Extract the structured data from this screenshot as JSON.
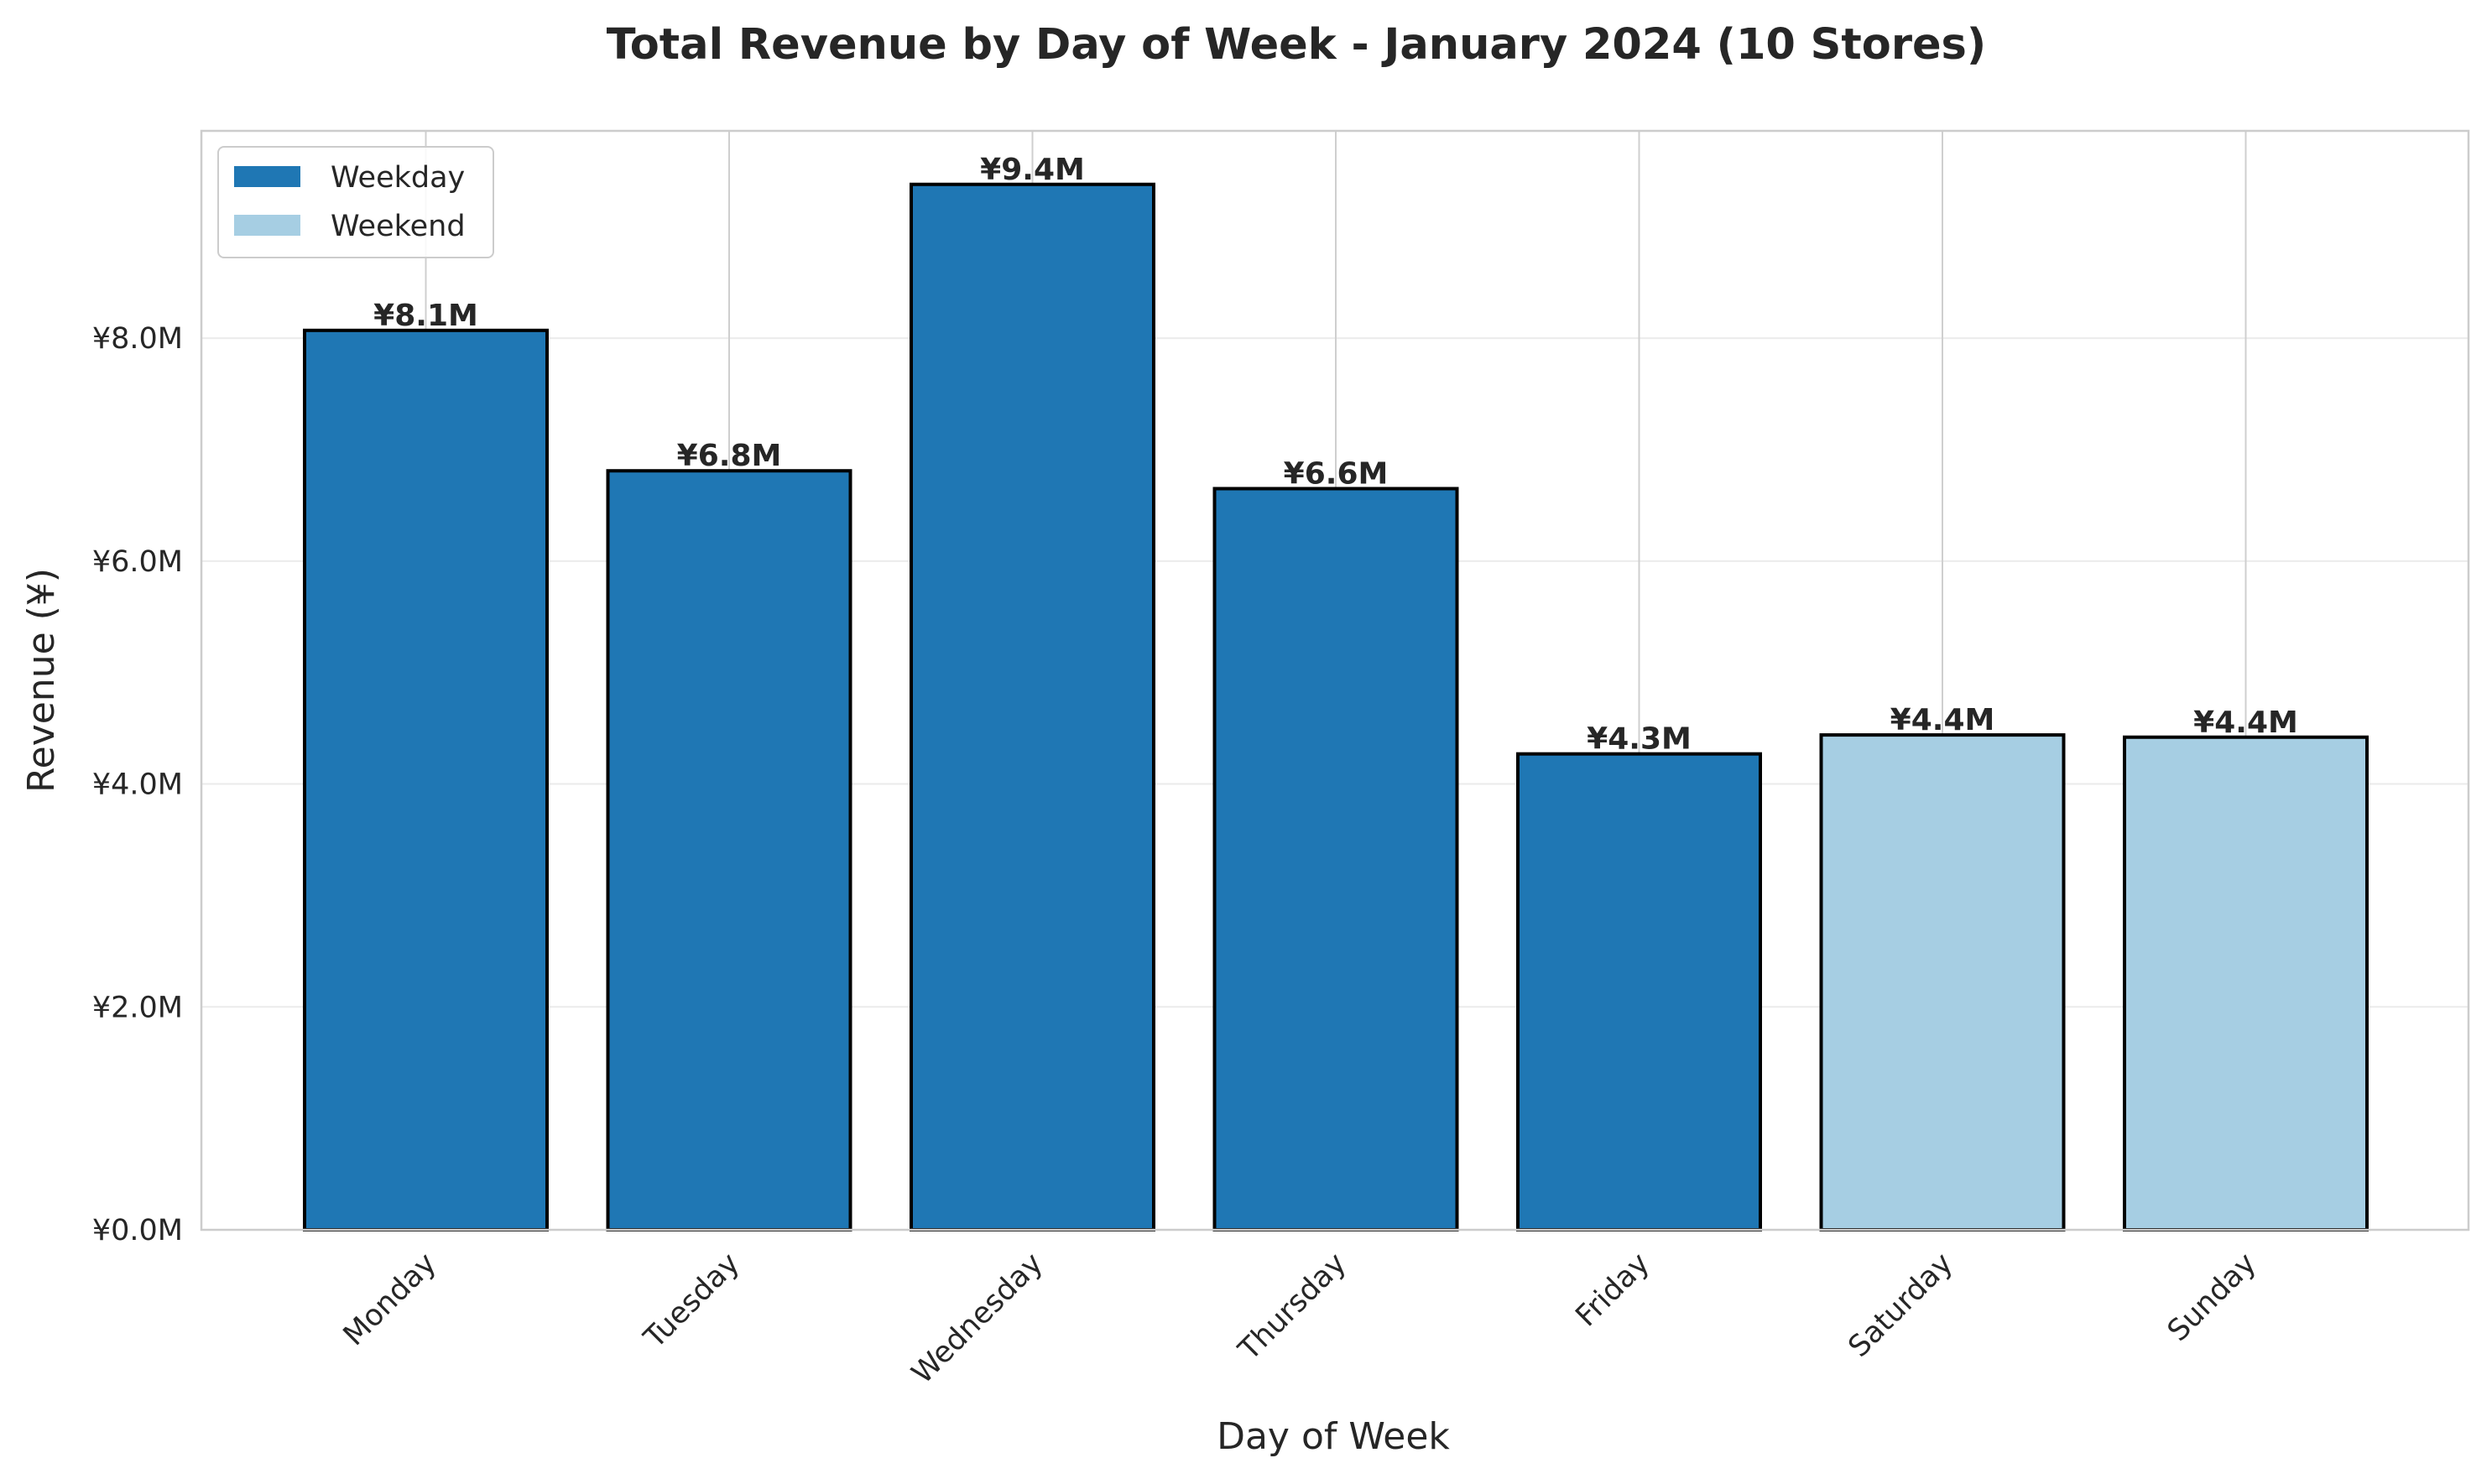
{
  "chart_data": {
    "type": "bar",
    "title": "Total Revenue by Day of Week - January 2024 (10 Stores)",
    "xlabel": "Day of Week",
    "ylabel": "Revenue (¥)",
    "ylim": [
      0,
      9.86
    ],
    "yticks": [
      0,
      2,
      4,
      6,
      8
    ],
    "ytick_labels": [
      "¥0.0M",
      "¥2.0M",
      "¥4.0M",
      "¥6.0M",
      "¥8.0M"
    ],
    "categories": [
      "Monday",
      "Tuesday",
      "Wednesday",
      "Thursday",
      "Friday",
      "Saturday",
      "Sunday"
    ],
    "values": [
      8.07,
      6.81,
      9.38,
      6.65,
      4.27,
      4.44,
      4.42
    ],
    "value_labels": [
      "¥8.1M",
      "¥6.8M",
      "¥9.4M",
      "¥6.6M",
      "¥4.3M",
      "¥4.4M",
      "¥4.4M"
    ],
    "groups": [
      "Weekday",
      "Weekday",
      "Weekday",
      "Weekday",
      "Weekday",
      "Weekend",
      "Weekend"
    ],
    "legend": {
      "placement": "top-left",
      "entries": [
        {
          "name": "Weekday",
          "color": "#1f77b4"
        },
        {
          "name": "Weekend",
          "color": "#a6cee3"
        }
      ]
    },
    "grid": true
  }
}
